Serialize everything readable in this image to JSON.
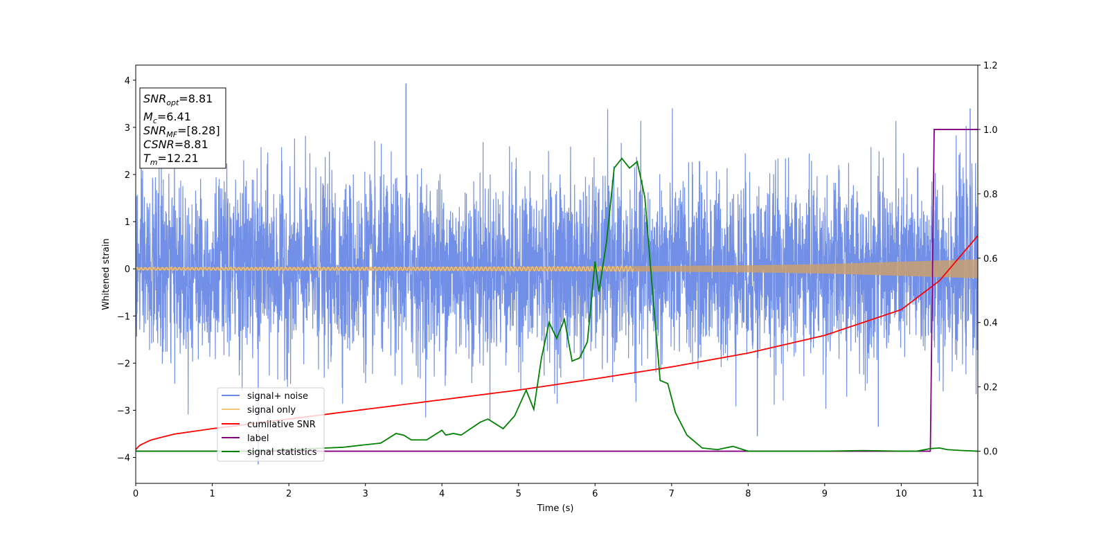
{
  "chart_data": {
    "type": "line",
    "title": "",
    "xlabel": "Time (s)",
    "ylabel": "Whitened strain",
    "xlim": [
      0,
      11
    ],
    "ylim": [
      -4.55,
      4.32
    ],
    "y2lim": [
      -0.1,
      1.2
    ],
    "x_ticks": [
      0,
      1,
      2,
      3,
      4,
      5,
      6,
      7,
      8,
      9,
      10,
      11
    ],
    "x_tick_labels": [
      "0",
      "1",
      "2",
      "3",
      "4",
      "5",
      "6",
      "7",
      "8",
      "9",
      "10",
      "11"
    ],
    "y_ticks": [
      -4,
      -3,
      -2,
      -1,
      0,
      1,
      2,
      3,
      4
    ],
    "y_tick_labels": [
      "−4",
      "−3",
      "−2",
      "−1",
      "0",
      "1",
      "2",
      "3",
      "4"
    ],
    "y2_ticks": [
      0.0,
      0.2,
      0.4,
      0.6,
      0.8,
      1.0,
      1.2
    ],
    "y2_tick_labels": [
      "0.0",
      "0.2",
      "0.4",
      "0.6",
      "0.8",
      "1.0",
      "1.2"
    ],
    "grid": false,
    "legend_placement": "lower-left",
    "stats_box": {
      "snr_opt": {
        "base": "SNR",
        "sub": "opt",
        "value": "=8.81"
      },
      "mc": {
        "base": "M",
        "sub": "c",
        "value": "=6.41"
      },
      "snr_mf": {
        "base": "SNR",
        "sub": "MF",
        "value": "=[8.28]"
      },
      "csnr": {
        "base": "CSNR",
        "value": "=8.81"
      },
      "tm": {
        "base": "T",
        "sub": "m",
        "value": "=12.21"
      }
    },
    "series": [
      {
        "name": "signal+ noise",
        "axis": "left",
        "color": "#6a89e6",
        "description_values": "whitened noise, approx. gaussian with sigma ~0.9",
        "peak_values": [
          [
            3.53,
            3.93
          ],
          [
            1.6,
            -4.15
          ],
          [
            8.12,
            -3.55
          ],
          [
            9.7,
            -3.35
          ],
          [
            10.9,
            3.4
          ]
        ]
      },
      {
        "name": "signal only",
        "axis": "left",
        "color": "#f5c878",
        "amplitude": {
          "x": [
            0,
            2,
            4,
            6,
            8,
            9,
            10,
            11
          ],
          "y": [
            0.03,
            0.035,
            0.04,
            0.05,
            0.075,
            0.1,
            0.15,
            0.2
          ]
        }
      },
      {
        "name": "cumilative SNR",
        "axis": "right",
        "color": "#ff0000",
        "x": [
          0,
          0.05,
          0.2,
          0.5,
          1,
          2,
          3,
          4,
          5,
          6,
          7,
          8,
          9,
          10,
          10.5,
          11
        ],
        "y": [
          0.005,
          0.018,
          0.035,
          0.053,
          0.07,
          0.1,
          0.13,
          0.16,
          0.19,
          0.225,
          0.262,
          0.305,
          0.36,
          0.44,
          0.53,
          0.67
        ]
      },
      {
        "name": "label",
        "axis": "right",
        "color": "#800080",
        "x": [
          0,
          10.38,
          10.43,
          11
        ],
        "y": [
          0,
          0,
          1,
          1
        ]
      },
      {
        "name": "signal statistics",
        "axis": "right",
        "color": "#008000",
        "x": [
          0,
          0.5,
          1,
          1.5,
          2,
          2.5,
          2.7,
          3,
          3.2,
          3.4,
          3.5,
          3.6,
          3.8,
          4.0,
          4.05,
          4.15,
          4.25,
          4.5,
          4.6,
          4.8,
          4.95,
          5.1,
          5.2,
          5.3,
          5.4,
          5.5,
          5.6,
          5.7,
          5.8,
          5.9,
          6.0,
          6.05,
          6.15,
          6.25,
          6.35,
          6.45,
          6.55,
          6.65,
          6.75,
          6.85,
          6.95,
          7.05,
          7.2,
          7.4,
          7.6,
          7.8,
          8.0,
          8.5,
          9.0,
          9.5,
          10.0,
          10.2,
          10.38,
          10.5,
          10.6,
          10.8,
          11.0
        ],
        "y": [
          0.0,
          0.0,
          0.0,
          0.0,
          0.005,
          0.01,
          0.012,
          0.02,
          0.025,
          0.055,
          0.05,
          0.035,
          0.035,
          0.065,
          0.05,
          0.055,
          0.05,
          0.09,
          0.1,
          0.07,
          0.11,
          0.19,
          0.13,
          0.29,
          0.4,
          0.35,
          0.41,
          0.28,
          0.29,
          0.34,
          0.59,
          0.495,
          0.65,
          0.88,
          0.91,
          0.88,
          0.9,
          0.79,
          0.5,
          0.22,
          0.21,
          0.12,
          0.05,
          0.01,
          0.005,
          0.015,
          0.0,
          0.0,
          0.0,
          0.002,
          0.0,
          0.0,
          0.008,
          0.01,
          0.005,
          0.002,
          0.0
        ]
      }
    ]
  }
}
